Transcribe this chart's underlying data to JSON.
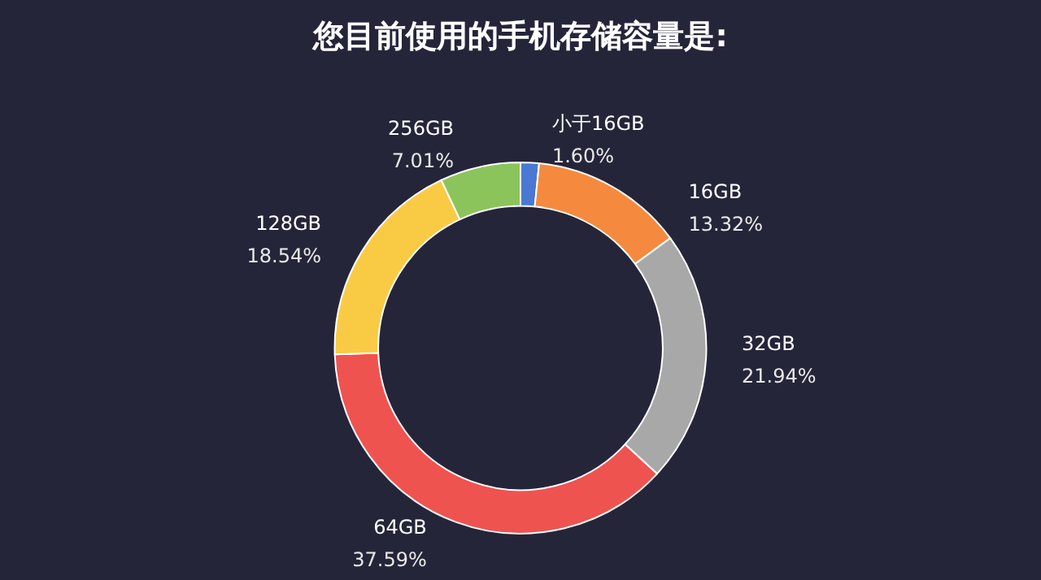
{
  "chart_data": {
    "type": "donut",
    "title": "您目前使用的手机存储容量是:",
    "categories": [
      "小于16GB",
      "16GB",
      "32GB",
      "64GB",
      "128GB",
      "256GB"
    ],
    "values": [
      1.6,
      13.32,
      21.94,
      37.59,
      18.54,
      7.01
    ],
    "value_labels": [
      "1.60%",
      "13.32%",
      "21.94%",
      "37.59%",
      "18.54%",
      "7.01%"
    ],
    "colors": [
      "#4a78d2",
      "#f58a3e",
      "#a8a8a8",
      "#ef5350",
      "#f9cb45",
      "#8cc45c"
    ],
    "legend": false
  }
}
